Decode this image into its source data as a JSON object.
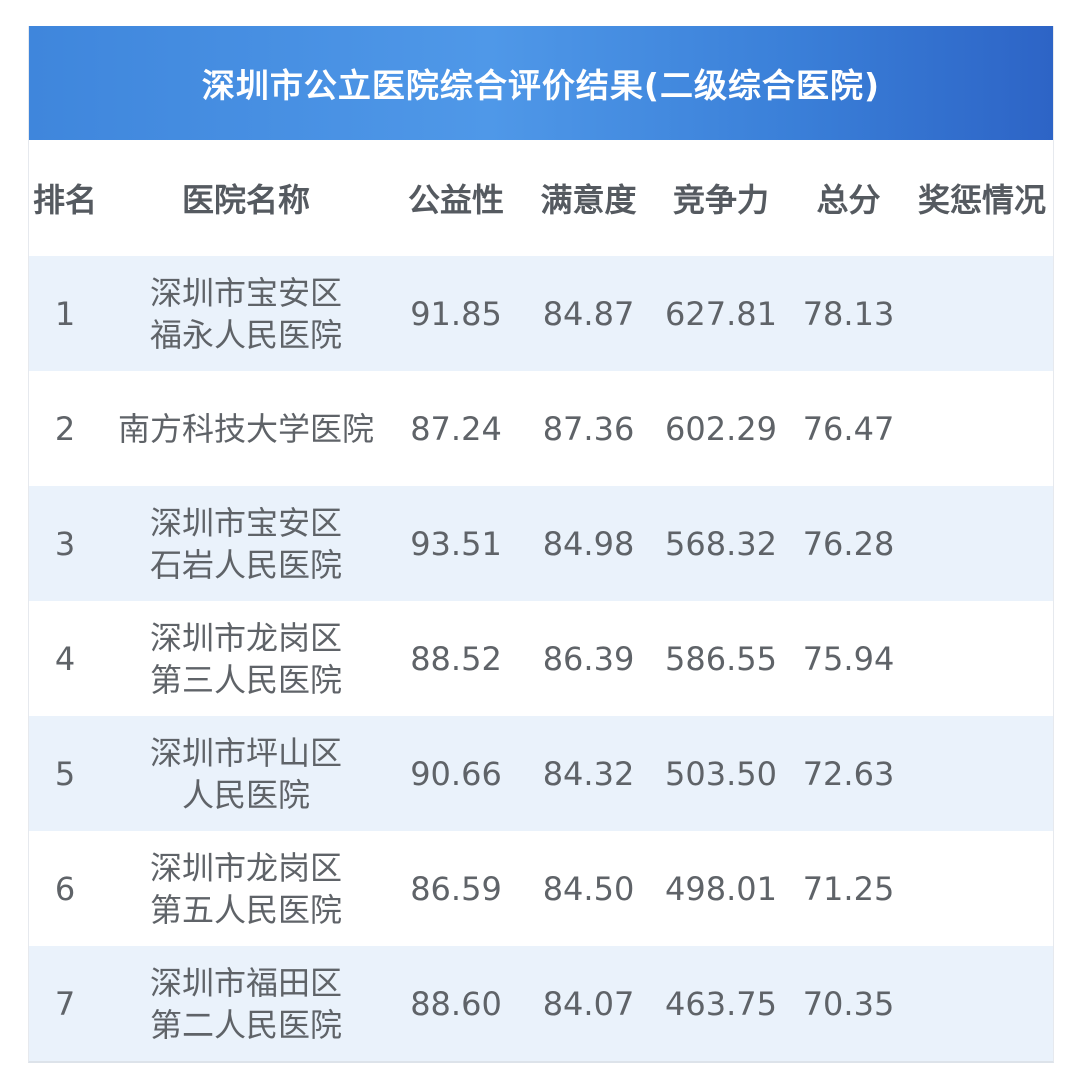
{
  "title": "深圳市公立医院综合评价结果(二级综合医院)",
  "colors": {
    "banner": "#3f86dc",
    "row_alt": "#eaf2fb",
    "text": "#5f6368"
  },
  "headers": [
    "排名",
    "医院名称",
    "公益性",
    "满意度",
    "竞争力",
    "总分",
    "奖惩情况"
  ],
  "rows": [
    {
      "rank": "1",
      "name": "深圳市宝安区\n福永人民医院",
      "gongyi": "91.85",
      "manyi": "84.87",
      "jingzheng": "627.81",
      "total": "78.13",
      "reward": ""
    },
    {
      "rank": "2",
      "name": "南方科技大学医院",
      "gongyi": "87.24",
      "manyi": "87.36",
      "jingzheng": "602.29",
      "total": "76.47",
      "reward": ""
    },
    {
      "rank": "3",
      "name": "深圳市宝安区\n石岩人民医院",
      "gongyi": "93.51",
      "manyi": "84.98",
      "jingzheng": "568.32",
      "total": "76.28",
      "reward": ""
    },
    {
      "rank": "4",
      "name": "深圳市龙岗区\n第三人民医院",
      "gongyi": "88.52",
      "manyi": "86.39",
      "jingzheng": "586.55",
      "total": "75.94",
      "reward": ""
    },
    {
      "rank": "5",
      "name": "深圳市坪山区\n人民医院",
      "gongyi": "90.66",
      "manyi": "84.32",
      "jingzheng": "503.50",
      "total": "72.63",
      "reward": ""
    },
    {
      "rank": "6",
      "name": "深圳市龙岗区\n第五人民医院",
      "gongyi": "86.59",
      "manyi": "84.50",
      "jingzheng": "498.01",
      "total": "71.25",
      "reward": ""
    },
    {
      "rank": "7",
      "name": "深圳市福田区\n第二人民医院",
      "gongyi": "88.60",
      "manyi": "84.07",
      "jingzheng": "463.75",
      "total": "70.35",
      "reward": ""
    }
  ]
}
